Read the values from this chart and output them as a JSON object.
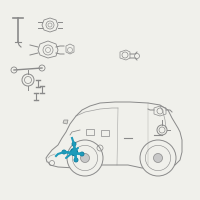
{
  "bg_color": "#f0f0eb",
  "car_line_color": "#8a8a8a",
  "highlight_color": "#1e9bba",
  "part_color": "#8a8a8a",
  "fig_width": 2.0,
  "fig_height": 2.0,
  "dpi": 100
}
